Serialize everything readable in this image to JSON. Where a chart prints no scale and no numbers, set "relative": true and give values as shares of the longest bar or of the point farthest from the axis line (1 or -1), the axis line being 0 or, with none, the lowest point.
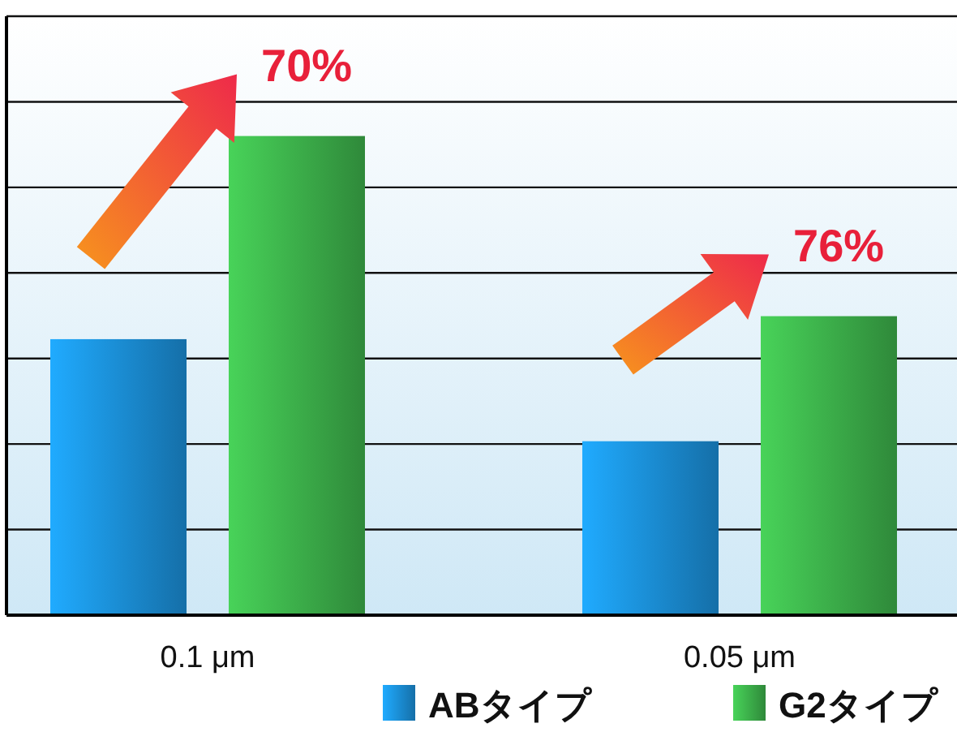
{
  "chart_data": {
    "type": "bar",
    "relative": true,
    "categories": [
      "0.1 μm",
      "0.05 μm"
    ],
    "series": [
      {
        "name": "ABタイプ",
        "color": "#1a8ad0",
        "values": [
          0.576,
          0.363
        ]
      },
      {
        "name": "G2タイプ",
        "color": "#3aaa48",
        "values": [
          1,
          0.624
        ]
      }
    ],
    "annotations": [
      "70%",
      "76%"
    ],
    "grid": true,
    "legend": "bottom right"
  }
}
